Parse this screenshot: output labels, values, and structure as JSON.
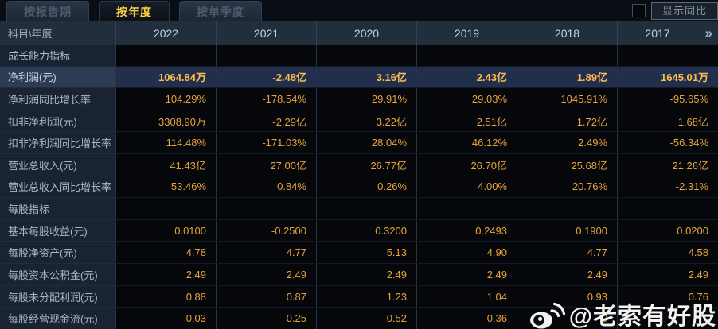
{
  "tabs": [
    {
      "name": "tab-report-period",
      "label": "按报告期",
      "active": false
    },
    {
      "name": "tab-annual",
      "label": "按年度",
      "active": true
    },
    {
      "name": "tab-quarterly",
      "label": "按单季度",
      "active": false
    }
  ],
  "controls": {
    "show_yoy_label": "显示同比",
    "checkbox_checked": false
  },
  "table": {
    "corner_label": "科目\\年度",
    "years": [
      "2022",
      "2021",
      "2020",
      "2019",
      "2018",
      "2017"
    ],
    "more_icon": "»",
    "rows": [
      {
        "type": "section",
        "label": "成长能力指标",
        "values": [
          "",
          "",
          "",
          "",
          "",
          ""
        ]
      },
      {
        "type": "data",
        "highlight": true,
        "label": "净利润(元)",
        "values": [
          "1064.84万",
          "-2.48亿",
          "3.16亿",
          "2.43亿",
          "1.89亿",
          "1645.01万"
        ]
      },
      {
        "type": "data",
        "label": "净利润同比增长率",
        "values": [
          "104.29%",
          "-178.54%",
          "29.91%",
          "29.03%",
          "1045.91%",
          "-95.65%"
        ]
      },
      {
        "type": "data",
        "label": "扣非净利润(元)",
        "values": [
          "3308.90万",
          "-2.29亿",
          "3.22亿",
          "2.51亿",
          "1.72亿",
          "1.68亿"
        ]
      },
      {
        "type": "data",
        "label": "扣非净利润同比增长率",
        "values": [
          "114.48%",
          "-171.03%",
          "28.04%",
          "46.12%",
          "2.49%",
          "-56.34%"
        ]
      },
      {
        "type": "data",
        "label": "营业总收入(元)",
        "values": [
          "41.43亿",
          "27.00亿",
          "26.77亿",
          "26.70亿",
          "25.68亿",
          "21.26亿"
        ]
      },
      {
        "type": "data",
        "label": "营业总收入同比增长率",
        "values": [
          "53.46%",
          "0.84%",
          "0.26%",
          "4.00%",
          "20.76%",
          "-2.31%"
        ]
      },
      {
        "type": "section",
        "label": "每股指标",
        "values": [
          "",
          "",
          "",
          "",
          "",
          ""
        ]
      },
      {
        "type": "data",
        "label": "基本每股收益(元)",
        "values": [
          "0.0100",
          "-0.2500",
          "0.3200",
          "0.2493",
          "0.1900",
          "0.0200"
        ]
      },
      {
        "type": "data",
        "label": "每股净资产(元)",
        "values": [
          "4.78",
          "4.77",
          "5.13",
          "4.90",
          "4.77",
          "4.58"
        ]
      },
      {
        "type": "data",
        "label": "每股资本公积金(元)",
        "values": [
          "2.49",
          "2.49",
          "2.49",
          "2.49",
          "2.49",
          "2.49"
        ]
      },
      {
        "type": "data",
        "label": "每股未分配利润(元)",
        "values": [
          "0.88",
          "0.87",
          "1.23",
          "1.04",
          "0.93",
          "0.76"
        ]
      },
      {
        "type": "data",
        "label": "每股经营现金流(元)",
        "values": [
          "0.03",
          "0.25",
          "0.52",
          "0.36",
          "0",
          ""
        ]
      }
    ]
  },
  "watermark": {
    "icon": "weibo-icon",
    "text": "@老索有好股"
  },
  "colors": {
    "value_text": "#e8a33c",
    "highlight_value_text": "#ffbd4d",
    "active_tab_text": "#ffd23f",
    "header_bg": "#232e3d",
    "label_cell_bg": "#1a2331",
    "highlight_row_bg": "#212e4c"
  }
}
